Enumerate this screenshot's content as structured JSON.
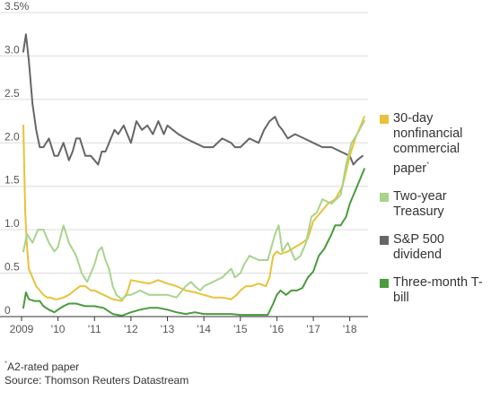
{
  "chart_data": {
    "type": "line",
    "title": "",
    "xlabel": "",
    "ylabel": "",
    "unit_suffix": "%",
    "xlim": [
      2009.0,
      2018.5
    ],
    "ylim": [
      0,
      3.5
    ],
    "y_ticks": [
      0,
      0.5,
      1.0,
      1.5,
      2.0,
      2.5,
      3.0,
      3.5
    ],
    "y_tick_labels": [
      "0",
      "0.5",
      "1.0",
      "1.5",
      "2.0",
      "2.5",
      "3.0",
      "3.5%"
    ],
    "x_ticks": [
      2009,
      2010,
      2011,
      2012,
      2013,
      2014,
      2015,
      2016,
      2017,
      2018
    ],
    "x_tick_labels": [
      "2009",
      "'10",
      "'11",
      "'12",
      "'13",
      "'14",
      "'15",
      "'16",
      "'17",
      "'18"
    ],
    "grid": true,
    "legend_position": "right",
    "series": [
      {
        "name": "S&P 500 dividend",
        "color": "#666666",
        "x": [
          2009.05,
          2009.12,
          2009.2,
          2009.3,
          2009.4,
          2009.5,
          2009.6,
          2009.75,
          2009.9,
          2010.0,
          2010.15,
          2010.3,
          2010.4,
          2010.5,
          2010.6,
          2010.75,
          2010.9,
          2011.0,
          2011.1,
          2011.2,
          2011.3,
          2011.45,
          2011.55,
          2011.65,
          2011.8,
          2011.9,
          2012.0,
          2012.15,
          2012.3,
          2012.45,
          2012.6,
          2012.75,
          2012.9,
          2013.0,
          2013.15,
          2013.3,
          2013.5,
          2013.75,
          2014.0,
          2014.25,
          2014.5,
          2014.75,
          2014.85,
          2015.0,
          2015.25,
          2015.5,
          2015.65,
          2015.8,
          2015.95,
          2016.05,
          2016.15,
          2016.3,
          2016.5,
          2016.75,
          2017.0,
          2017.25,
          2017.5,
          2017.75,
          2018.0,
          2018.1,
          2018.2,
          2018.35
        ],
        "values": [
          3.05,
          3.25,
          2.95,
          2.45,
          2.15,
          1.95,
          1.95,
          2.05,
          1.85,
          1.85,
          2.0,
          1.8,
          1.9,
          2.05,
          2.05,
          1.85,
          1.85,
          1.8,
          1.75,
          1.9,
          1.9,
          2.05,
          2.15,
          2.1,
          2.2,
          2.1,
          2.0,
          2.25,
          2.15,
          2.2,
          2.1,
          2.25,
          2.1,
          2.2,
          2.15,
          2.1,
          2.05,
          2.0,
          1.95,
          1.95,
          2.05,
          2.0,
          1.95,
          1.95,
          2.05,
          2.0,
          2.15,
          2.25,
          2.3,
          2.2,
          2.15,
          2.05,
          2.1,
          2.05,
          2.0,
          1.95,
          1.95,
          1.9,
          1.85,
          1.75,
          1.8,
          1.85
        ]
      },
      {
        "name": "30-day nonfinancial commercial paper",
        "name_note": "*",
        "color": "#e8c23a",
        "x": [
          2009.05,
          2009.1,
          2009.15,
          2009.2,
          2009.3,
          2009.4,
          2009.5,
          2009.6,
          2009.7,
          2009.8,
          2009.9,
          2010.0,
          2010.15,
          2010.3,
          2010.45,
          2010.6,
          2010.75,
          2010.9,
          2011.0,
          2011.25,
          2011.5,
          2011.75,
          2011.9,
          2012.0,
          2012.25,
          2012.5,
          2012.75,
          2013.0,
          2013.25,
          2013.5,
          2013.75,
          2014.0,
          2014.25,
          2014.5,
          2014.75,
          2014.9,
          2015.0,
          2015.15,
          2015.3,
          2015.5,
          2015.7,
          2015.8,
          2015.9,
          2016.0,
          2016.1,
          2016.3,
          2016.5,
          2016.7,
          2016.85,
          2017.0,
          2017.2,
          2017.4,
          2017.6,
          2017.8,
          2018.0,
          2018.15,
          2018.3,
          2018.4
        ],
        "values": [
          2.2,
          1.2,
          0.8,
          0.55,
          0.45,
          0.35,
          0.3,
          0.25,
          0.22,
          0.22,
          0.2,
          0.2,
          0.22,
          0.25,
          0.3,
          0.35,
          0.35,
          0.3,
          0.3,
          0.25,
          0.2,
          0.18,
          0.28,
          0.42,
          0.4,
          0.38,
          0.42,
          0.38,
          0.35,
          0.3,
          0.28,
          0.25,
          0.22,
          0.22,
          0.2,
          0.25,
          0.3,
          0.35,
          0.35,
          0.38,
          0.35,
          0.45,
          0.7,
          0.75,
          0.72,
          0.75,
          0.8,
          0.85,
          0.9,
          1.1,
          1.2,
          1.3,
          1.35,
          1.5,
          1.85,
          2.05,
          2.2,
          2.3
        ]
      },
      {
        "name": "Two-year Treasury",
        "color": "#a8d48c",
        "x": [
          2009.05,
          2009.15,
          2009.3,
          2009.45,
          2009.6,
          2009.75,
          2009.9,
          2010.0,
          2010.15,
          2010.3,
          2010.5,
          2010.65,
          2010.8,
          2011.0,
          2011.1,
          2011.2,
          2011.3,
          2011.4,
          2011.5,
          2011.6,
          2011.75,
          2011.9,
          2012.0,
          2012.25,
          2012.5,
          2012.75,
          2013.0,
          2013.25,
          2013.5,
          2013.65,
          2013.75,
          2013.9,
          2014.0,
          2014.25,
          2014.5,
          2014.75,
          2014.85,
          2015.0,
          2015.1,
          2015.25,
          2015.5,
          2015.75,
          2015.95,
          2016.05,
          2016.15,
          2016.3,
          2016.5,
          2016.65,
          2016.8,
          2016.95,
          2017.1,
          2017.25,
          2017.5,
          2017.75,
          2017.9,
          2018.05,
          2018.2,
          2018.4
        ],
        "values": [
          0.75,
          0.95,
          0.85,
          1.0,
          1.0,
          0.85,
          0.75,
          0.8,
          1.05,
          0.85,
          0.7,
          0.5,
          0.4,
          0.6,
          0.75,
          0.8,
          0.65,
          0.55,
          0.35,
          0.25,
          0.2,
          0.25,
          0.25,
          0.3,
          0.25,
          0.25,
          0.25,
          0.22,
          0.35,
          0.4,
          0.35,
          0.3,
          0.35,
          0.4,
          0.45,
          0.55,
          0.45,
          0.5,
          0.6,
          0.7,
          0.65,
          0.65,
          0.95,
          1.05,
          0.75,
          0.85,
          0.65,
          0.7,
          0.85,
          1.15,
          1.2,
          1.35,
          1.3,
          1.4,
          1.75,
          2.0,
          2.1,
          2.25
        ]
      },
      {
        "name": "Three-month T-bill",
        "color": "#4a9b3c",
        "x": [
          2009.05,
          2009.12,
          2009.2,
          2009.35,
          2009.5,
          2009.6,
          2009.75,
          2009.9,
          2010.0,
          2010.15,
          2010.3,
          2010.5,
          2010.75,
          2011.0,
          2011.25,
          2011.5,
          2011.75,
          2012.0,
          2012.25,
          2012.5,
          2012.75,
          2013.0,
          2013.25,
          2013.5,
          2013.75,
          2014.0,
          2014.25,
          2014.5,
          2014.75,
          2015.0,
          2015.25,
          2015.5,
          2015.75,
          2015.9,
          2016.0,
          2016.1,
          2016.25,
          2016.4,
          2016.55,
          2016.7,
          2016.85,
          2017.0,
          2017.15,
          2017.3,
          2017.5,
          2017.6,
          2017.75,
          2017.9,
          2018.0,
          2018.15,
          2018.3,
          2018.4
        ],
        "values": [
          0.1,
          0.28,
          0.2,
          0.18,
          0.18,
          0.12,
          0.08,
          0.05,
          0.08,
          0.12,
          0.15,
          0.15,
          0.12,
          0.12,
          0.1,
          0.03,
          0.01,
          0.05,
          0.08,
          0.1,
          0.1,
          0.08,
          0.05,
          0.03,
          0.05,
          0.03,
          0.03,
          0.03,
          0.03,
          0.02,
          0.02,
          0.02,
          0.02,
          0.15,
          0.25,
          0.3,
          0.25,
          0.3,
          0.3,
          0.33,
          0.45,
          0.52,
          0.7,
          0.78,
          0.95,
          1.05,
          1.05,
          1.15,
          1.3,
          1.45,
          1.6,
          1.7
        ]
      }
    ],
    "legend_order": [
      "30-day nonfinancial commercial paper",
      "Two-year Treasury",
      "S&P 500 dividend",
      "Three-month T-bill"
    ],
    "notes": [
      {
        "marker": "*",
        "text": "A2-rated paper"
      },
      {
        "marker": "",
        "text": "Source: Thomson Reuters Datastream"
      }
    ]
  }
}
